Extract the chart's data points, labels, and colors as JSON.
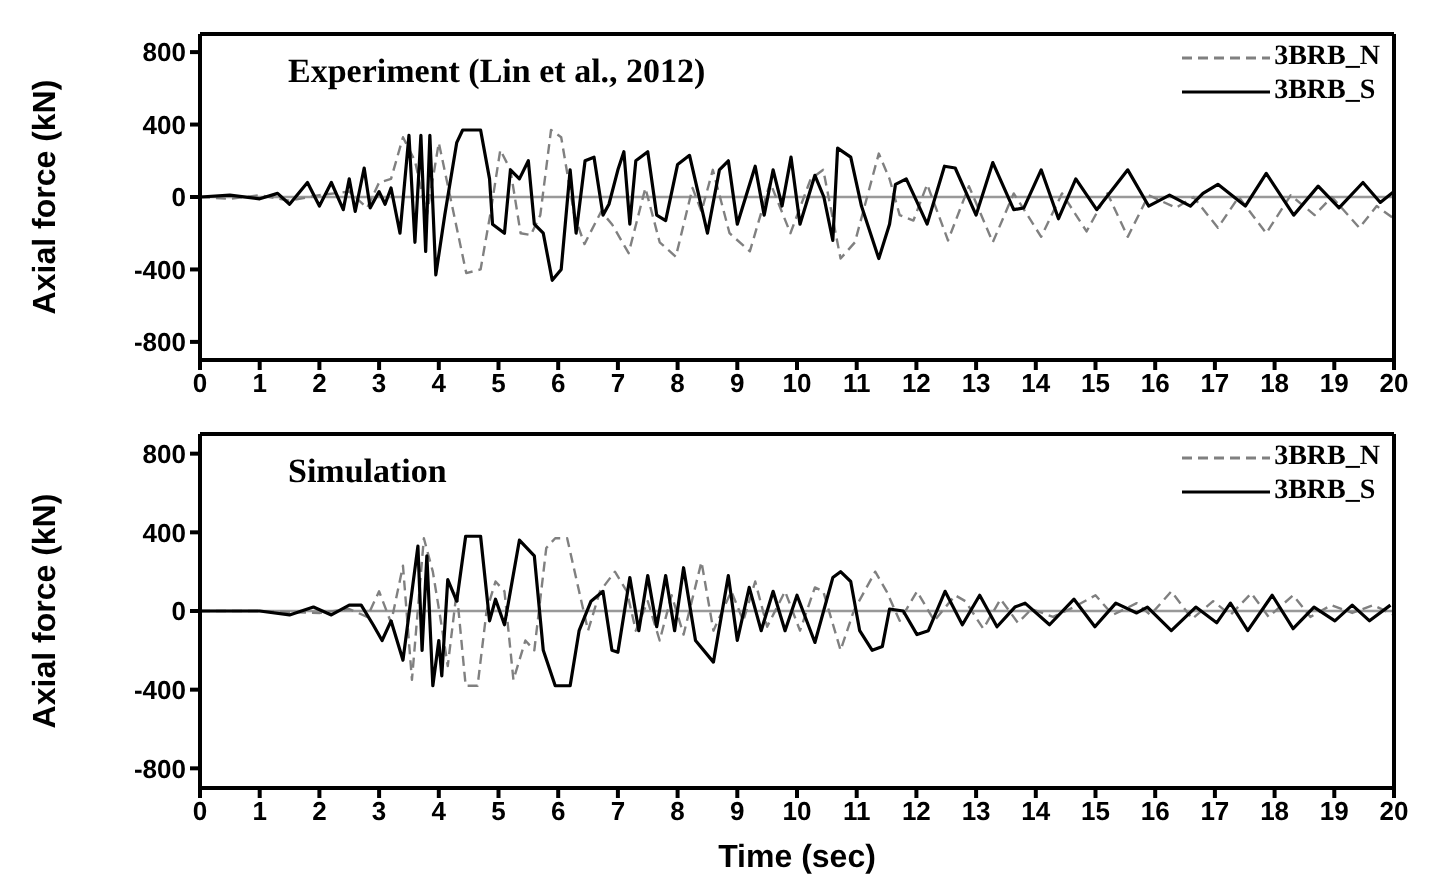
{
  "chart_data": [
    {
      "type": "line",
      "title": "Experiment (Lin et al., 2012)",
      "ylabel": "Axial force (kN)",
      "xlim": [
        0,
        20
      ],
      "xticks": [
        0,
        1,
        2,
        3,
        4,
        5,
        6,
        7,
        8,
        9,
        10,
        11,
        12,
        13,
        14,
        15,
        16,
        17,
        18,
        19,
        20
      ],
      "ylim": [
        -900,
        900
      ],
      "yticks": [
        -800,
        -400,
        0,
        400,
        800
      ],
      "legend": "top right",
      "marker": "none",
      "ref_lines": [
        {
          "axis": "y",
          "value": 0,
          "color": "#999999"
        }
      ],
      "series": [
        {
          "name": "3BRB_N",
          "color": "#808080",
          "line_style": "dashed",
          "x": [
            0,
            0.5,
            1,
            1.5,
            2,
            2.5,
            2.8,
            3,
            3.2,
            3.4,
            3.6,
            3.8,
            4,
            4.46,
            4.7,
            4.86,
            5.03,
            5.2,
            5.37,
            5.54,
            5.7,
            5.88,
            6.05,
            6.27,
            6.44,
            6.72,
            6.9,
            7.18,
            7.46,
            7.7,
            7.97,
            8.25,
            8.4,
            8.59,
            8.87,
            9.21,
            9.55,
            9.89,
            10.23,
            10.44,
            10.73,
            10.97,
            11.37,
            11.55,
            11.72,
            11.95,
            12.18,
            12.53,
            12.88,
            13.28,
            13.63,
            14.09,
            14.44,
            14.85,
            15.2,
            15.54,
            15.89,
            16.35,
            16.64,
            17.05,
            17.4,
            17.86,
            18.27,
            18.67,
            18.96,
            19.42,
            19.71,
            20
          ],
          "values": [
            0,
            -10,
            10,
            -20,
            10,
            30,
            -60,
            80,
            100,
            330,
            200,
            -100,
            300,
            -420,
            -400,
            -100,
            260,
            150,
            -200,
            -210,
            -100,
            370,
            330,
            -100,
            -260,
            -80,
            -150,
            -310,
            50,
            -250,
            -330,
            50,
            -80,
            150,
            -200,
            -300,
            80,
            -200,
            100,
            150,
            -340,
            -250,
            240,
            100,
            -100,
            -130,
            70,
            -240,
            60,
            -250,
            20,
            -220,
            20,
            -190,
            20,
            -220,
            10,
            -60,
            0,
            -170,
            0,
            -200,
            10,
            -100,
            0,
            -170,
            -50,
            -120
          ]
        },
        {
          "name": "3BRB_S",
          "color": "#000000",
          "line_style": "solid",
          "x": [
            0,
            0.5,
            1,
            1.3,
            1.5,
            1.8,
            2,
            2.2,
            2.4,
            2.5,
            2.6,
            2.75,
            2.85,
            3,
            3.1,
            3.2,
            3.35,
            3.5,
            3.6,
            3.7,
            3.78,
            3.85,
            3.95,
            4.1,
            4.3,
            4.4,
            4.7,
            4.85,
            4.9,
            5.1,
            5.2,
            5.35,
            5.5,
            5.6,
            5.75,
            5.9,
            6.05,
            6.2,
            6.3,
            6.45,
            6.6,
            6.75,
            6.85,
            7,
            7.1,
            7.2,
            7.3,
            7.5,
            7.65,
            7.8,
            8,
            8.2,
            8.5,
            8.7,
            8.85,
            9,
            9.3,
            9.45,
            9.6,
            9.75,
            9.9,
            10.05,
            10.3,
            10.45,
            10.6,
            10.68,
            10.9,
            11.08,
            11.37,
            11.55,
            11.65,
            11.83,
            12,
            12.18,
            12.47,
            12.65,
            13,
            13.28,
            13.63,
            13.8,
            14.09,
            14.38,
            14.67,
            15.02,
            15.54,
            15.89,
            16.24,
            16.59,
            16.8,
            17.05,
            17.51,
            17.86,
            18.32,
            18.73,
            19.08,
            19.48,
            19.77,
            20
          ],
          "values": [
            0,
            10,
            -10,
            20,
            -40,
            80,
            -50,
            80,
            -70,
            100,
            -80,
            160,
            -60,
            30,
            -40,
            50,
            -200,
            340,
            -250,
            340,
            -300,
            340,
            -430,
            -100,
            300,
            370,
            370,
            100,
            -150,
            -200,
            150,
            100,
            200,
            -150,
            -200,
            -460,
            -400,
            150,
            -200,
            200,
            220,
            -100,
            -40,
            150,
            250,
            -150,
            200,
            250,
            -100,
            -130,
            180,
            230,
            -200,
            150,
            200,
            -150,
            170,
            -100,
            150,
            -50,
            220,
            -150,
            120,
            0,
            -240,
            270,
            220,
            -50,
            -340,
            -150,
            70,
            100,
            -20,
            -150,
            170,
            160,
            -100,
            190,
            -70,
            -60,
            150,
            -120,
            100,
            -70,
            150,
            -50,
            10,
            -50,
            20,
            70,
            -50,
            130,
            -100,
            60,
            -60,
            80,
            -30,
            30
          ]
        }
      ]
    },
    {
      "type": "line",
      "title": "Simulation",
      "xlabel": "Time (sec)",
      "ylabel": "Axial force (kN)",
      "xlim": [
        0,
        20
      ],
      "xticks": [
        0,
        1,
        2,
        3,
        4,
        5,
        6,
        7,
        8,
        9,
        10,
        11,
        12,
        13,
        14,
        15,
        16,
        17,
        18,
        19,
        20
      ],
      "ylim": [
        -900,
        900
      ],
      "yticks": [
        -800,
        -400,
        0,
        400,
        800
      ],
      "legend": "top right",
      "marker": "none",
      "ref_lines": [
        {
          "axis": "y",
          "value": 0,
          "color": "#999999"
        }
      ],
      "series": [
        {
          "name": "3BRB_N",
          "color": "#808080",
          "line_style": "dashed",
          "x": [
            0,
            1,
            2,
            2.5,
            2.8,
            3,
            3.2,
            3.4,
            3.55,
            3.75,
            3.9,
            4.05,
            4.15,
            4.3,
            4.45,
            4.65,
            4.8,
            4.95,
            5.1,
            5.25,
            5.45,
            5.6,
            5.8,
            5.95,
            6.15,
            6.35,
            6.5,
            6.7,
            6.95,
            7.15,
            7.3,
            7.5,
            7.7,
            7.9,
            8.1,
            8.4,
            8.6,
            8.9,
            9.1,
            9.3,
            9.5,
            9.8,
            10.05,
            10.3,
            10.44,
            10.73,
            10.95,
            11.31,
            11.5,
            11.72,
            12.01,
            12.3,
            12.65,
            12.82,
            13.12,
            13.41,
            13.7,
            13.93,
            14.29,
            14.64,
            15,
            15.29,
            15.69,
            15.92,
            16.27,
            16.62,
            16.97,
            17.26,
            17.61,
            17.9,
            18.31,
            18.6,
            18.95,
            19.3,
            19.65,
            20
          ],
          "values": [
            0,
            0,
            -10,
            10,
            -30,
            100,
            -60,
            230,
            -350,
            370,
            200,
            -80,
            -280,
            100,
            -380,
            -380,
            0,
            150,
            100,
            -350,
            -150,
            -200,
            320,
            370,
            370,
            100,
            -100,
            100,
            200,
            100,
            -100,
            50,
            -150,
            80,
            -120,
            250,
            -100,
            100,
            -50,
            150,
            -80,
            100,
            -100,
            120,
            100,
            -200,
            0,
            200,
            100,
            -50,
            100,
            -50,
            80,
            50,
            -90,
            60,
            -60,
            10,
            -30,
            20,
            80,
            -20,
            40,
            -20,
            100,
            -40,
            50,
            -20,
            90,
            -30,
            80,
            -30,
            30,
            -10,
            30,
            -20
          ]
        },
        {
          "name": "3BRB_S",
          "color": "#000000",
          "line_style": "solid",
          "x": [
            0,
            1,
            1.5,
            1.9,
            2.2,
            2.5,
            2.7,
            2.9,
            3.05,
            3.2,
            3.4,
            3.65,
            3.72,
            3.8,
            3.9,
            4,
            4.05,
            4.15,
            4.3,
            4.45,
            4.7,
            4.85,
            4.95,
            5.1,
            5.35,
            5.6,
            5.75,
            5.95,
            6.2,
            6.35,
            6.55,
            6.75,
            6.9,
            7,
            7.2,
            7.35,
            7.5,
            7.65,
            7.8,
            7.95,
            8.1,
            8.3,
            8.6,
            8.85,
            9,
            9.2,
            9.4,
            9.6,
            9.8,
            10,
            10.3,
            10.6,
            10.73,
            10.9,
            11.05,
            11.26,
            11.43,
            11.55,
            11.78,
            12.01,
            12.2,
            12.48,
            12.77,
            13.06,
            13.35,
            13.65,
            13.82,
            14.23,
            14.64,
            14.99,
            15.34,
            15.69,
            15.87,
            16.27,
            16.68,
            17.03,
            17.26,
            17.55,
            17.96,
            18.31,
            18.66,
            19.01,
            19.3,
            19.59,
            19.94
          ],
          "values": [
            0,
            0,
            -20,
            20,
            -20,
            30,
            30,
            -70,
            -150,
            -50,
            -250,
            330,
            -200,
            280,
            -380,
            -150,
            -330,
            160,
            50,
            380,
            380,
            -50,
            60,
            -70,
            360,
            280,
            -200,
            -380,
            -380,
            -100,
            50,
            100,
            -200,
            -210,
            170,
            -100,
            180,
            -80,
            180,
            -100,
            220,
            -150,
            -260,
            180,
            -150,
            120,
            -100,
            100,
            -100,
            80,
            -160,
            170,
            200,
            150,
            -100,
            -200,
            -180,
            10,
            0,
            -120,
            -100,
            100,
            -70,
            80,
            -80,
            20,
            40,
            -70,
            60,
            -80,
            40,
            -10,
            20,
            -100,
            20,
            -60,
            40,
            -100,
            80,
            -90,
            20,
            -50,
            30,
            -50,
            30
          ]
        }
      ]
    }
  ]
}
